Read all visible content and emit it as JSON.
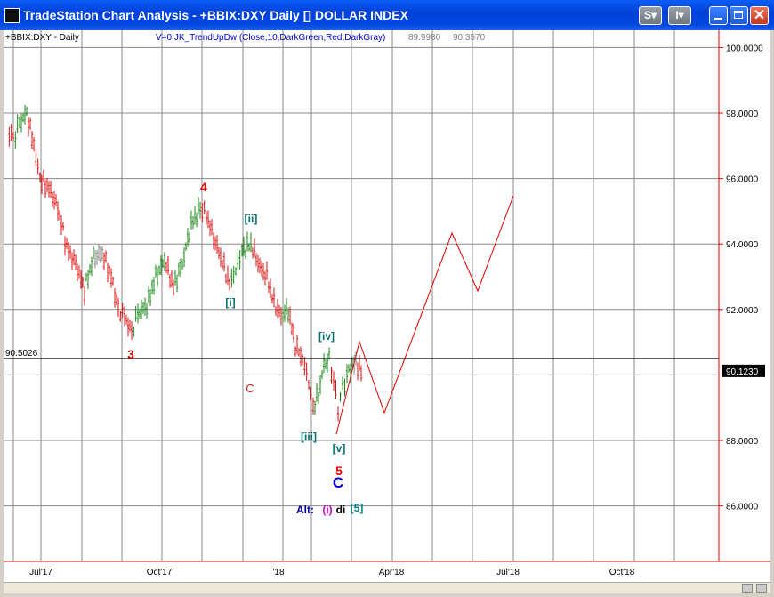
{
  "window": {
    "title": "TradeStation Chart Analysis - +BBIX:DXY Daily [] DOLLAR INDEX",
    "buttons": [
      "S",
      "I",
      "minimize",
      "maximize",
      "close"
    ]
  },
  "header": {
    "symbol_label": "+BBIX:DXY - Daily",
    "indicator_label": "V=0  JK_TrendUpDw (Close,10,DarkGreen,Red,DarkGray)",
    "indicator_val1": "89.9980",
    "indicator_val2": "90.3570"
  },
  "price_axis": {
    "ticks": [
      {
        "value": 100,
        "label": "100.0000"
      },
      {
        "value": 98,
        "label": "98.0000"
      },
      {
        "value": 96,
        "label": "96.0000"
      },
      {
        "value": 94,
        "label": "94.0000"
      },
      {
        "value": 92,
        "label": "92.0000"
      },
      {
        "value": 88,
        "label": "88.0000"
      },
      {
        "value": 86,
        "label": "86.0000"
      }
    ],
    "last_price": {
      "value": 90.123,
      "label": "90.1230"
    },
    "hline": {
      "value": 90.5026,
      "label": "90.5026"
    }
  },
  "time_axis": {
    "labels": [
      "Jul'17",
      "Oct'17",
      "'18",
      "Apr'18",
      "Jul'18",
      "Oct'18"
    ]
  },
  "wave_labels": [
    {
      "text": "4",
      "color": "#ee0000"
    },
    {
      "text": "3",
      "color": "#cc0000"
    },
    {
      "text": "[ii]",
      "color": "#007070"
    },
    {
      "text": "[i]",
      "color": "#007070"
    },
    {
      "text": "[iv]",
      "color": "#007070"
    },
    {
      "text": "[iii]",
      "color": "#007070"
    },
    {
      "text": "[v]",
      "color": "#007070"
    },
    {
      "text": "C",
      "color": "#cc2222"
    },
    {
      "text": "5",
      "color": "#ee0000"
    },
    {
      "text": "C",
      "color": "#0000dd"
    },
    {
      "text": "Alt:",
      "color": "#000099"
    },
    {
      "text": "(i)",
      "color": "#cc00cc"
    },
    {
      "text": "di",
      "color": "#000000"
    },
    {
      "text": "[5]",
      "color": "#008080"
    }
  ],
  "colors": {
    "up_bar": "#1a8a1a",
    "down_bar": "#dd1111",
    "neutral_bar": "#808080",
    "projection": "#dd0000",
    "price_axis": "#dd0000",
    "grid": "#888888"
  }
}
